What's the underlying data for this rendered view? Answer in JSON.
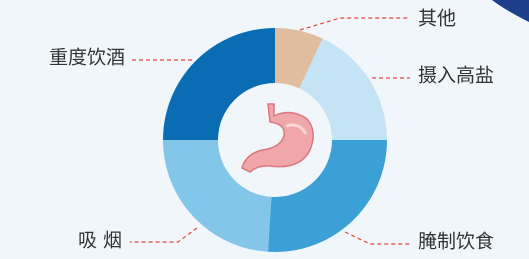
{
  "chart_data": {
    "type": "donut",
    "categories": [
      "其他",
      "摄入高盐",
      "腌制饮食",
      "吸 烟",
      "重度饮酒"
    ],
    "values": [
      7,
      18,
      26,
      24,
      25
    ],
    "colors": [
      "#dfbd9e",
      "#c4e3f5",
      "#3aa0d6",
      "#83c6ea",
      "#0a6db4"
    ]
  }
}
